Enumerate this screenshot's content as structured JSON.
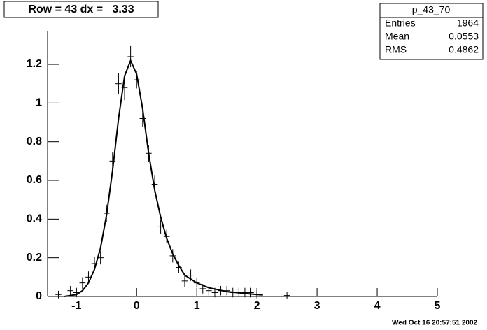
{
  "chart_data": {
    "type": "errorbar",
    "title": "Row = 43 dx =   3.33",
    "stats": {
      "title": "p_43_70",
      "rows": [
        [
          "Entries",
          1964
        ],
        [
          "Mean",
          0.0553
        ],
        [
          "RMS",
          0.4862
        ]
      ]
    },
    "footer": "Wed Oct 16 20:57:51 2002",
    "xlim": [
      -1.48,
      5
    ],
    "xticks": [
      -1,
      0,
      1,
      2,
      3,
      4,
      5
    ],
    "ylim": [
      0,
      1.37
    ],
    "yticks": [
      0,
      0.2,
      0.4,
      0.6,
      0.8,
      1,
      1.2
    ],
    "series": [
      {
        "type": "errorbar",
        "color": "#000000",
        "xerr": 0.05,
        "x": [
          -1.3,
          -1.1,
          -1.0,
          -0.9,
          -0.8,
          -0.7,
          -0.6,
          -0.5,
          -0.4,
          -0.3,
          -0.2,
          -0.1,
          0.0,
          0.1,
          0.2,
          0.3,
          0.4,
          0.5,
          0.6,
          0.7,
          0.8,
          0.9,
          1.0,
          1.1,
          1.2,
          1.3,
          1.4,
          1.5,
          1.6,
          1.7,
          1.8,
          1.9,
          2.0,
          2.5
        ],
        "y": [
          0.01,
          0.03,
          0.02,
          0.07,
          0.1,
          0.17,
          0.2,
          0.43,
          0.7,
          1.1,
          1.08,
          1.24,
          1.12,
          0.92,
          0.74,
          0.58,
          0.36,
          0.31,
          0.21,
          0.15,
          0.08,
          0.11,
          0.07,
          0.04,
          0.03,
          0.02,
          0.03,
          0.03,
          0.02,
          0.02,
          0.02,
          0.02,
          0.01,
          0.005
        ],
        "err": [
          0.005,
          0.01,
          0.01,
          0.015,
          0.015,
          0.02,
          0.02,
          0.03,
          0.03,
          0.04,
          0.05,
          0.04,
          0.03,
          0.03,
          0.03,
          0.03,
          0.02,
          0.02,
          0.02,
          0.015,
          0.015,
          0.015,
          0.01,
          0.01,
          0.01,
          0.01,
          0.01,
          0.01,
          0.01,
          0.01,
          0.01,
          0.01,
          0.005,
          0.005
        ]
      },
      {
        "type": "line",
        "color": "#000000",
        "x": [
          -1.2,
          -1.0,
          -0.9,
          -0.8,
          -0.7,
          -0.6,
          -0.5,
          -0.4,
          -0.3,
          -0.2,
          -0.1,
          0.0,
          0.1,
          0.2,
          0.3,
          0.4,
          0.5,
          0.6,
          0.7,
          0.8,
          1.0,
          1.2,
          1.5,
          2.0,
          2.1
        ],
        "y": [
          0,
          0.01,
          0.03,
          0.07,
          0.14,
          0.25,
          0.42,
          0.65,
          0.92,
          1.14,
          1.22,
          1.15,
          0.97,
          0.74,
          0.55,
          0.41,
          0.3,
          0.22,
          0.16,
          0.11,
          0.07,
          0.045,
          0.025,
          0.01,
          0.008
        ]
      }
    ]
  }
}
